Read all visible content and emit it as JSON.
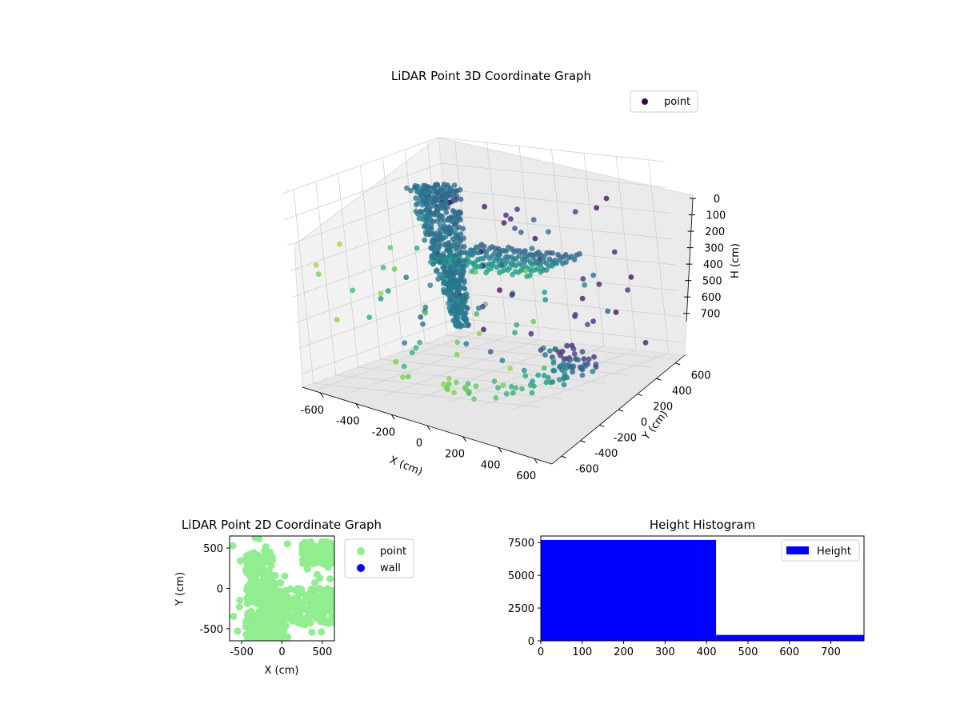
{
  "figure_background": "#ffffff",
  "chart_data": [
    {
      "type": "scatter3d",
      "title": "LiDAR Point 3D Coordinate Graph",
      "xlabel": "X (cm)",
      "ylabel": "Y (cm)",
      "zlabel": "H (cm)",
      "xlim": [
        -700,
        700
      ],
      "ylim": [
        -700,
        700
      ],
      "zlim": [
        750,
        0
      ],
      "z_inverted": true,
      "xticks": [
        -600,
        -400,
        -200,
        0,
        200,
        400,
        600
      ],
      "yticks": [
        -600,
        -400,
        -200,
        0,
        200,
        400,
        600
      ],
      "zticks": [
        0,
        100,
        200,
        300,
        400,
        500,
        600,
        700
      ],
      "grid": true,
      "legend": {
        "position": "top-right",
        "entries": [
          {
            "label": "point",
            "color": "#440154"
          }
        ]
      },
      "colormap": "viridis",
      "color_by": "y",
      "series": [
        {
          "name": "point",
          "groups": [
            {
              "desc": "dense cluster",
              "x_range": [
                -520,
                -220
              ],
              "y_range": [
                -20,
                320
              ],
              "h_range": [
                0,
                600
              ],
              "count": 700
            },
            {
              "desc": "scattered",
              "x_range": [
                -650,
                650
              ],
              "y_range": [
                -650,
                650
              ],
              "h_range": [
                100,
                720
              ],
              "count": 110
            },
            {
              "desc": "grid rows",
              "x_range": [
                -200,
                460
              ],
              "y_range": [
                -250,
                250
              ],
              "h_range": [
                300,
                330
              ],
              "count": 160
            },
            {
              "desc": "near-floor arcs",
              "x_range": [
                200,
                650
              ],
              "y_range": [
                -650,
                650
              ],
              "h_range": [
                700,
                780
              ],
              "count": 80
            }
          ]
        }
      ]
    },
    {
      "type": "scatter",
      "title": "LiDAR Point 2D Coordinate Graph",
      "xlabel": "X (cm)",
      "ylabel": "Y (cm)",
      "xlim": [
        -650,
        650
      ],
      "ylim": [
        -650,
        650
      ],
      "xticks": [
        -500,
        0,
        500
      ],
      "yticks": [
        -500,
        0,
        500
      ],
      "legend": {
        "position": "outside-right",
        "entries": [
          {
            "label": "point",
            "color": "#90ee90"
          },
          {
            "label": "wall",
            "color": "#0000ff"
          }
        ]
      },
      "series": [
        {
          "name": "point",
          "color": "#90ee90",
          "regions": [
            {
              "x_range": [
                -450,
                -100
              ],
              "y_range": [
                -200,
                450
              ]
            },
            {
              "x_range": [
                -300,
                650
              ],
              "y_range": [
                -450,
                0
              ]
            },
            {
              "x_range": [
                250,
                650
              ],
              "y_range": [
                300,
                580
              ]
            },
            {
              "x_range": [
                -450,
                50
              ],
              "y_range": [
                -650,
                -300
              ]
            }
          ]
        },
        {
          "name": "wall",
          "color": "#0000ff",
          "points": []
        }
      ]
    },
    {
      "type": "bar",
      "title": "Height Histogram",
      "xlabel": "",
      "ylabel": "",
      "xlim": [
        0,
        780
      ],
      "ylim": [
        0,
        8000
      ],
      "xticks": [
        0,
        100,
        200,
        300,
        400,
        500,
        600,
        700
      ],
      "yticks": [
        0,
        2500,
        5000,
        7500
      ],
      "legend": {
        "position": "top-right",
        "entries": [
          {
            "label": "Height",
            "color": "#0000ff"
          }
        ]
      },
      "series": [
        {
          "name": "Height",
          "color": "#0000ff",
          "bins": [
            [
              0,
              423,
              7700
            ],
            [
              423,
              780,
              450
            ]
          ]
        }
      ]
    }
  ]
}
